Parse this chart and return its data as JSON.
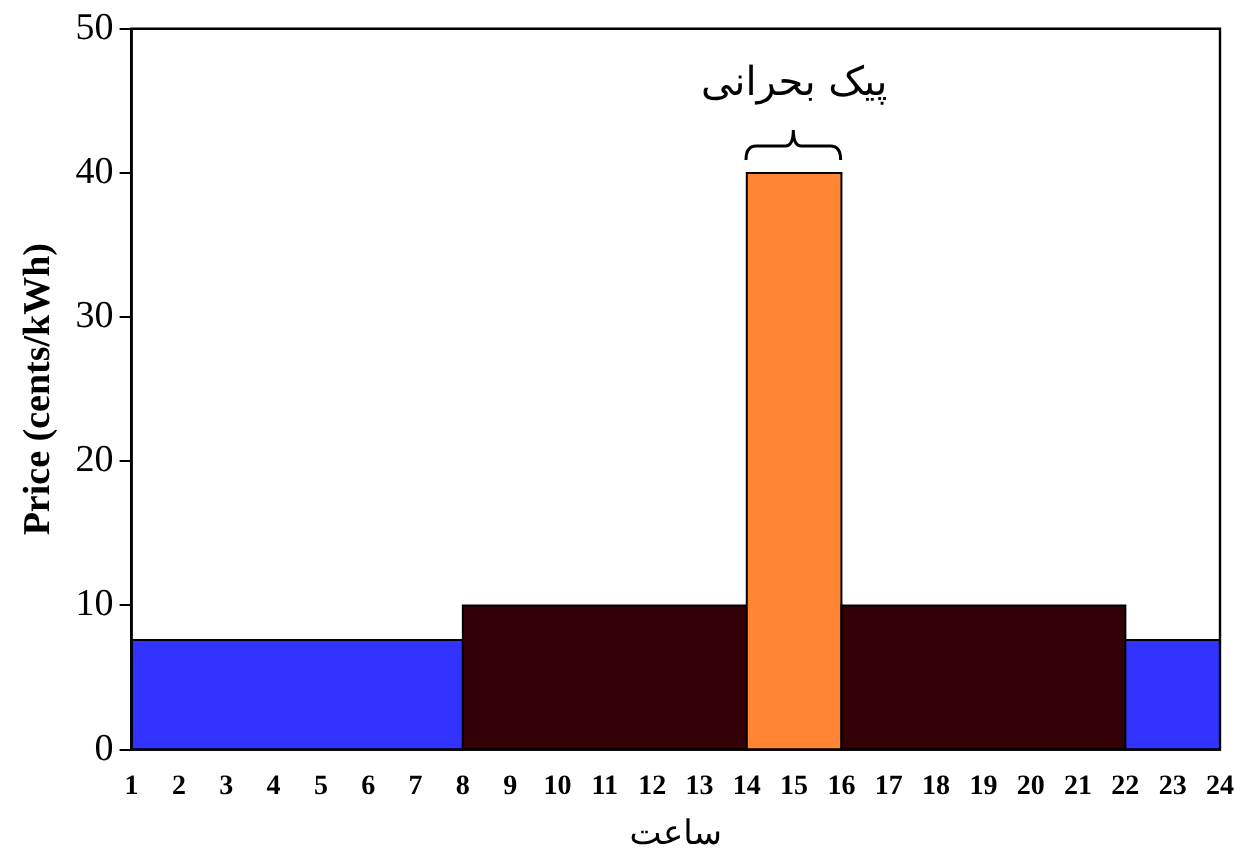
{
  "chart_data": {
    "type": "histogram",
    "bins": [
      1,
      8,
      14,
      16,
      22,
      24
    ],
    "values": [
      7.6,
      10,
      40,
      10,
      7.6
    ],
    "colors": [
      "#3333ff",
      "#330008",
      "#ff8533",
      "#330008",
      "#3333ff"
    ],
    "xlabel": "ساعت",
    "ylabel": "Price (cents/kWh)",
    "xlim": [
      1,
      24
    ],
    "xticks": [
      1,
      2,
      3,
      4,
      5,
      6,
      7,
      8,
      9,
      10,
      11,
      12,
      13,
      14,
      15,
      16,
      17,
      18,
      19,
      20,
      21,
      22,
      23,
      24
    ],
    "ylim": [
      0,
      50
    ],
    "yticks": [
      0,
      10,
      20,
      30,
      40,
      50
    ],
    "annotations": [
      "پیک بحرانی"
    ],
    "grid": false,
    "legend": false
  }
}
